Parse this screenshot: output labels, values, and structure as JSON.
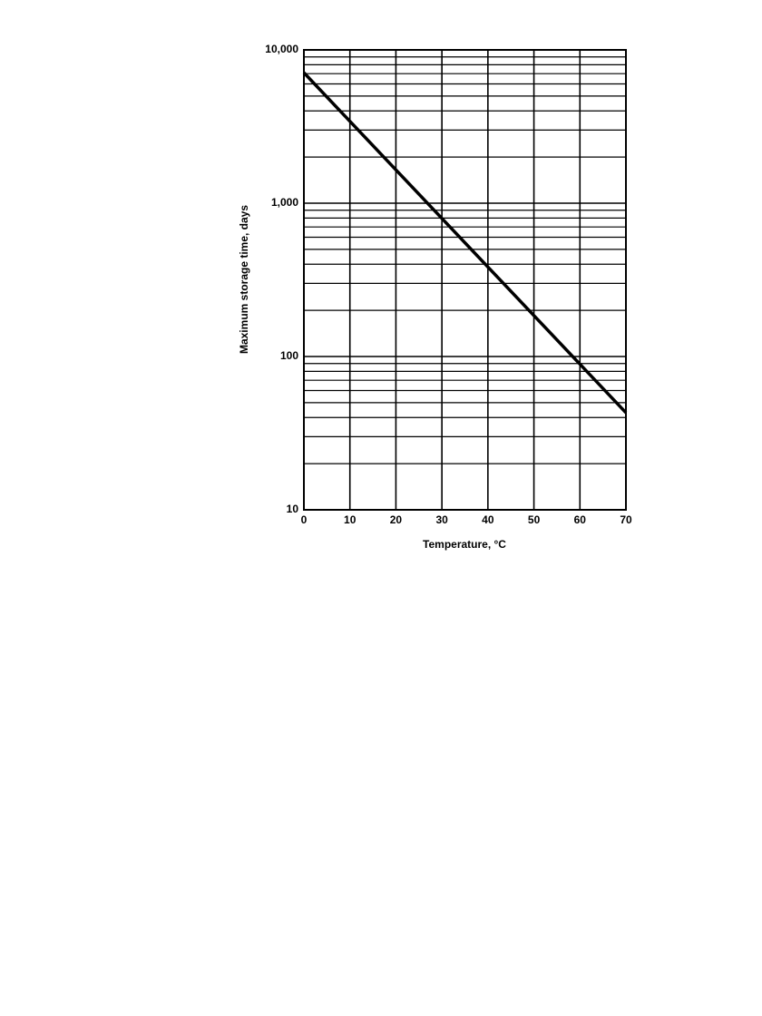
{
  "chart_data": {
    "type": "line",
    "x_label": "Temperature, °C",
    "y_label": "Maximum storage time, days",
    "x": [
      0,
      70
    ],
    "values": [
      7100,
      43
    ],
    "color": "#000000",
    "xlim": [
      0,
      70
    ],
    "xticks": [
      0,
      10,
      20,
      30,
      40,
      50,
      60,
      70
    ],
    "ylim": [
      10,
      10000
    ],
    "yticks": [
      {
        "value": 10000,
        "label": "10,000"
      },
      {
        "value": 1000,
        "label": "1,000"
      },
      100,
      10
    ],
    "y_log": true,
    "grid": true,
    "minor_grid": true
  }
}
